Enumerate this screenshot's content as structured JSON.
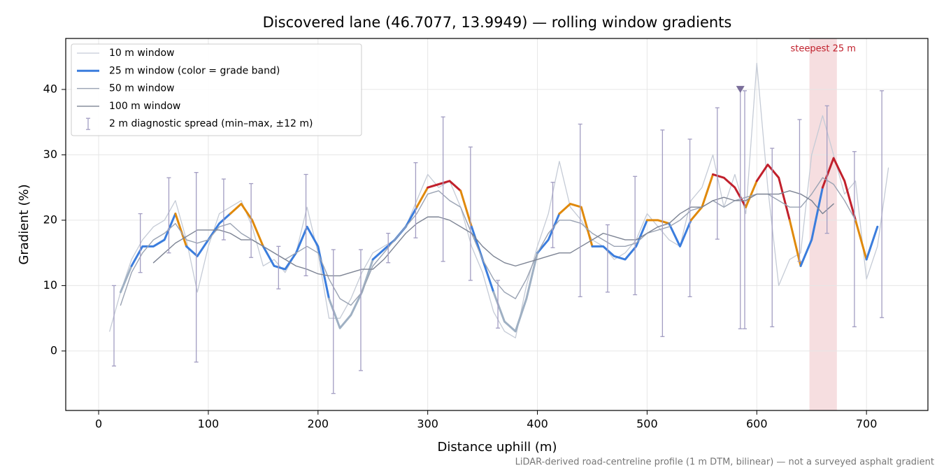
{
  "chart_data": {
    "type": "line",
    "title": "Discovered lane (46.7077, 13.9949) — rolling window gradients",
    "x_label": "Distance uphill (m)",
    "y_label": "Gradient (%)",
    "footnote": "LiDAR-derived road-centreline profile (1 m DTM, bilinear) — not a surveyed asphalt gradient",
    "xlim": [
      -30,
      756
    ],
    "ylim": [
      -9.1,
      47.8
    ],
    "xticks": [
      0,
      100,
      200,
      300,
      400,
      500,
      600,
      700
    ],
    "yticks": [
      0,
      10,
      20,
      30,
      40
    ],
    "grid": true,
    "legend": "upper left",
    "x": [
      10,
      20,
      30,
      40,
      50,
      60,
      70,
      80,
      90,
      100,
      110,
      120,
      130,
      140,
      150,
      160,
      170,
      180,
      190,
      200,
      210,
      220,
      230,
      240,
      250,
      260,
      270,
      280,
      290,
      300,
      310,
      320,
      330,
      340,
      350,
      360,
      370,
      380,
      390,
      400,
      410,
      420,
      430,
      440,
      450,
      460,
      470,
      480,
      490,
      500,
      510,
      520,
      530,
      540,
      550,
      560,
      570,
      580,
      590,
      600,
      610,
      620,
      630,
      640,
      650,
      660,
      670,
      680,
      690,
      700,
      710,
      720
    ],
    "series": [
      {
        "name": "10 m window",
        "color": "#c5cbd6",
        "width": 1.3,
        "values": [
          3,
          9,
          14,
          17,
          19,
          20,
          23,
          17,
          9,
          16,
          21,
          22,
          23,
          19,
          13,
          14,
          12,
          15,
          22,
          15,
          5,
          5,
          8,
          12,
          15,
          16,
          17,
          19,
          23,
          27,
          25,
          26,
          22,
          16,
          12,
          6,
          3,
          2,
          10,
          16,
          21,
          29,
          22,
          20,
          17,
          16,
          14,
          15,
          17,
          21,
          19,
          17,
          16,
          23,
          25,
          30,
          22,
          27,
          21,
          44,
          25,
          10,
          14,
          15,
          30,
          36,
          30,
          24,
          26,
          11,
          16,
          28
        ]
      },
      {
        "name": "25 m window (color = grade band)",
        "color": "#3b7ddd",
        "width": 3,
        "banded": true,
        "values": [
          null,
          9,
          13,
          16,
          16,
          17,
          21,
          16,
          14.5,
          17,
          19.5,
          21,
          22.5,
          20,
          16,
          13,
          12.5,
          15,
          19,
          16,
          8,
          3.5,
          5.5,
          9,
          14,
          15.5,
          17,
          19,
          22,
          25,
          25.5,
          26,
          24.5,
          19,
          14,
          9,
          4.5,
          3,
          8,
          15,
          17,
          21,
          22.5,
          22,
          16,
          16,
          14.5,
          14,
          16,
          20,
          20,
          19.5,
          16,
          20,
          22,
          27,
          26.5,
          25,
          22,
          26,
          28.5,
          26.5,
          20,
          13,
          17,
          25,
          29.5,
          26,
          20,
          14,
          19,
          null
        ]
      },
      {
        "name": "50 m window",
        "color": "#9aa3b3",
        "width": 1.4,
        "values": [
          null,
          7,
          12,
          15,
          17,
          18,
          19.5,
          17,
          16.5,
          17,
          19,
          19.5,
          18,
          17,
          16,
          15,
          14,
          15,
          16,
          15,
          11,
          8,
          7,
          9,
          13,
          15,
          17,
          19,
          21,
          24,
          24.5,
          23,
          22,
          18,
          14,
          11,
          9,
          8,
          11,
          15,
          18,
          20,
          20,
          19.5,
          18,
          17,
          16,
          16,
          16.5,
          18,
          18.5,
          19,
          20,
          21.5,
          22,
          23,
          22,
          23,
          23.5,
          24,
          24,
          23,
          22,
          22,
          24,
          26.5,
          25.5,
          23,
          20,
          null,
          null,
          null
        ]
      },
      {
        "name": "100 m window",
        "color": "#7d8494",
        "width": 1.4,
        "values": [
          null,
          null,
          null,
          null,
          13.5,
          15,
          16.5,
          17.5,
          18.5,
          18.5,
          18.5,
          18,
          17,
          17,
          16,
          15,
          14,
          13,
          12.5,
          11.8,
          11.5,
          11.5,
          12,
          12.5,
          12.5,
          14,
          16,
          18,
          19.5,
          20.5,
          20.5,
          20,
          19,
          18,
          16,
          14.5,
          13.5,
          13,
          13.5,
          14,
          14.5,
          15,
          15,
          16,
          17,
          18,
          17.5,
          17,
          17,
          18,
          19,
          19.5,
          21,
          22,
          22,
          23,
          23.5,
          23,
          23,
          24,
          24,
          24,
          24.5,
          24,
          23,
          21,
          22.5,
          null,
          null,
          null,
          null,
          null
        ]
      }
    ],
    "grade_bands": [
      {
        "below": 10,
        "color": "#9fb0c3"
      },
      {
        "below": 20,
        "color": "#3b7ddd"
      },
      {
        "below": 25,
        "color": "#e0890b"
      },
      {
        "below": null,
        "color": "#c1202c"
      }
    ],
    "errorbars": {
      "name": "2 m diagnostic spread (min–max, ±12 m)",
      "color": "#a29dc2",
      "x": [
        14,
        38,
        64,
        89,
        114,
        139,
        164,
        189,
        214,
        239,
        264,
        289,
        314,
        339,
        364,
        414,
        439,
        464,
        489,
        514,
        539,
        564,
        585,
        589,
        614,
        639,
        664,
        689,
        714
      ],
      "low": [
        -2.3,
        12,
        15,
        -1.7,
        17,
        14.3,
        9.5,
        11.5,
        -6.5,
        -3,
        13.5,
        17.3,
        13.7,
        10.8,
        3.5,
        15.8,
        8.3,
        9,
        8.6,
        2.2,
        8.3,
        17.1,
        3.4,
        3.4,
        3.7,
        13.7,
        18,
        3.7,
        5.1
      ],
      "high": [
        10,
        21,
        26.5,
        27.3,
        26.3,
        25.6,
        16,
        27,
        15.5,
        15.5,
        18,
        28.8,
        35.8,
        31.2,
        10.8,
        25.8,
        34.7,
        19.3,
        26.7,
        33.8,
        32.4,
        37.2,
        40,
        39.8,
        31,
        35.4,
        37.5,
        30.5,
        39.8
      ]
    },
    "peak_marker": {
      "x": 585,
      "y": 40,
      "color": "#7a6e9a"
    },
    "highlight": {
      "label": "steepest 25 m",
      "xlim": [
        648,
        673
      ],
      "color": "#c1202c"
    }
  }
}
